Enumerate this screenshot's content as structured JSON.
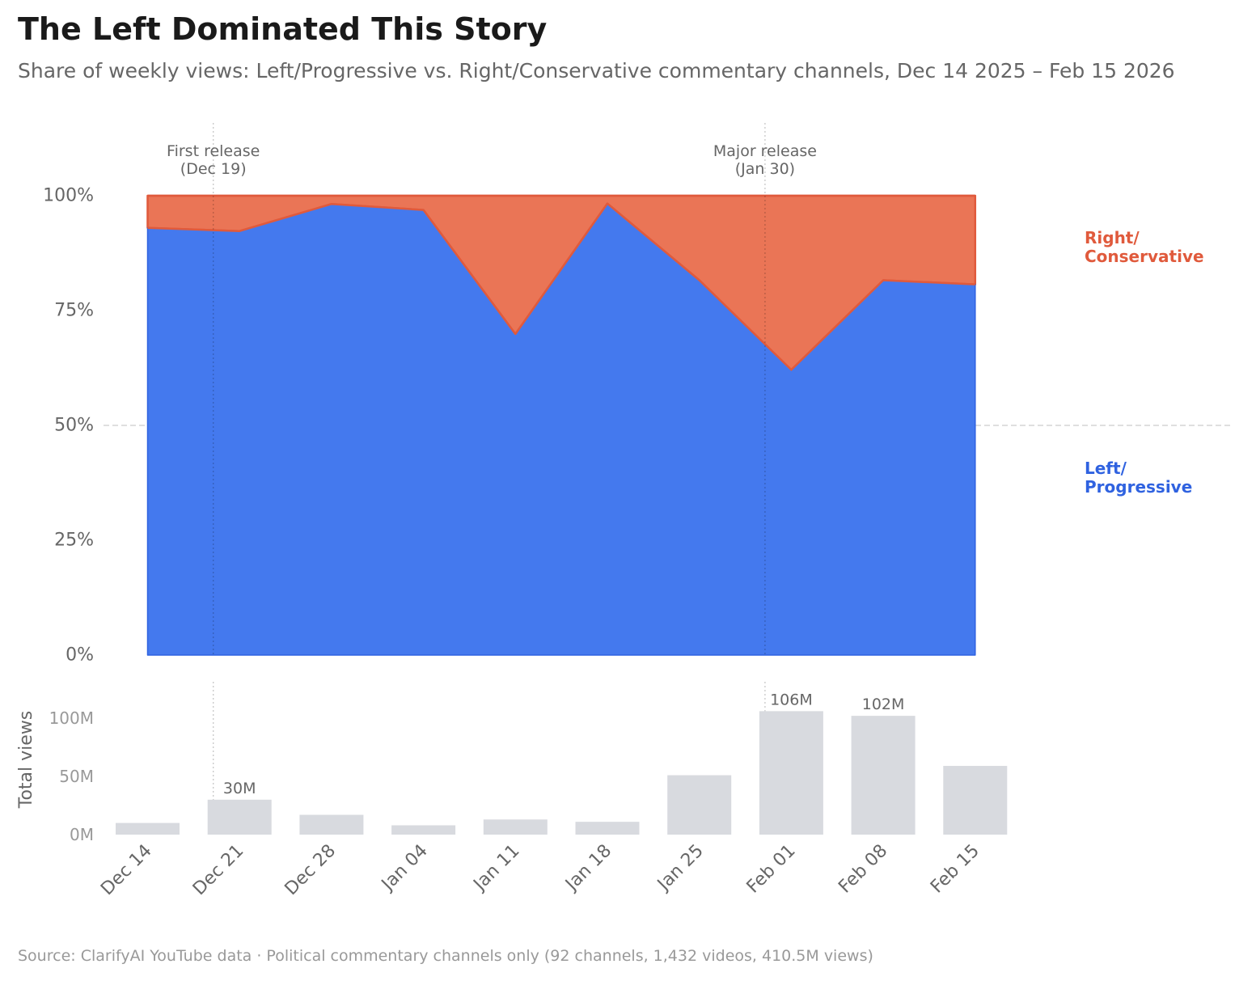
{
  "title": "The Left Dominated This Story",
  "subtitle": "Share of weekly views: Left/Progressive vs. Right/Conservative commentary channels, Dec 14 2025 – Feb 15 2026",
  "source": "Source: ClarifyAI YouTube data · Political commentary channels only (92 channels, 1,432 videos, 410.5M views)",
  "colors": {
    "left": "#4479ee",
    "left_edge": "#2f62e0",
    "right": "#ea7556",
    "right_edge": "#e05a3c",
    "bars": "#d8dadf",
    "axis_text": "#666666",
    "bar_axis_text": "#999999"
  },
  "chart_data": [
    {
      "type": "area",
      "stacked": true,
      "x": [
        "Dec 14",
        "Dec 21",
        "Dec 28",
        "Jan 04",
        "Jan 11",
        "Jan 18",
        "Jan 25",
        "Feb 01",
        "Feb 08",
        "Feb 15"
      ],
      "series": [
        {
          "name": "Left/ Progressive",
          "label_lines": [
            "Left/",
            "Progressive"
          ],
          "values": [
            93,
            92.3,
            98.2,
            96.9,
            69.9,
            98.3,
            81.6,
            62.1,
            81.6,
            80.7
          ]
        },
        {
          "name": "Right/ Conservative",
          "label_lines": [
            "Right/",
            "Conservative"
          ],
          "values": [
            7,
            7.7,
            1.8,
            3.1,
            30.1,
            1.7,
            18.4,
            37.9,
            18.4,
            19.3
          ]
        }
      ],
      "ylim": [
        0,
        100
      ],
      "yticks": [
        0,
        25,
        50,
        75,
        100
      ],
      "ytick_labels": [
        "0%",
        "25%",
        "50%",
        "75%",
        "100%"
      ],
      "reference_line": 50,
      "annotations": [
        {
          "x_date": "Dec 19",
          "lines": [
            "First release",
            "(Dec 19)"
          ]
        },
        {
          "x_date": "Jan 30",
          "lines": [
            "Major release",
            "(Jan 30)"
          ]
        }
      ],
      "legend": "right"
    },
    {
      "type": "bar",
      "categories": [
        "Dec 14",
        "Dec 21",
        "Dec 28",
        "Jan 04",
        "Jan 11",
        "Jan 18",
        "Jan 25",
        "Feb 01",
        "Feb 08",
        "Feb 15"
      ],
      "values": [
        10,
        30,
        17,
        8,
        13,
        11,
        51,
        106,
        102,
        59
      ],
      "data_labels": {
        "1": "30M",
        "7": "106M",
        "8": "102M"
      },
      "ylabel": "Total views",
      "ylim": [
        0,
        130
      ],
      "yticks": [
        0,
        50,
        100
      ],
      "ytick_labels": [
        "0M",
        "50M",
        "100M"
      ]
    }
  ]
}
